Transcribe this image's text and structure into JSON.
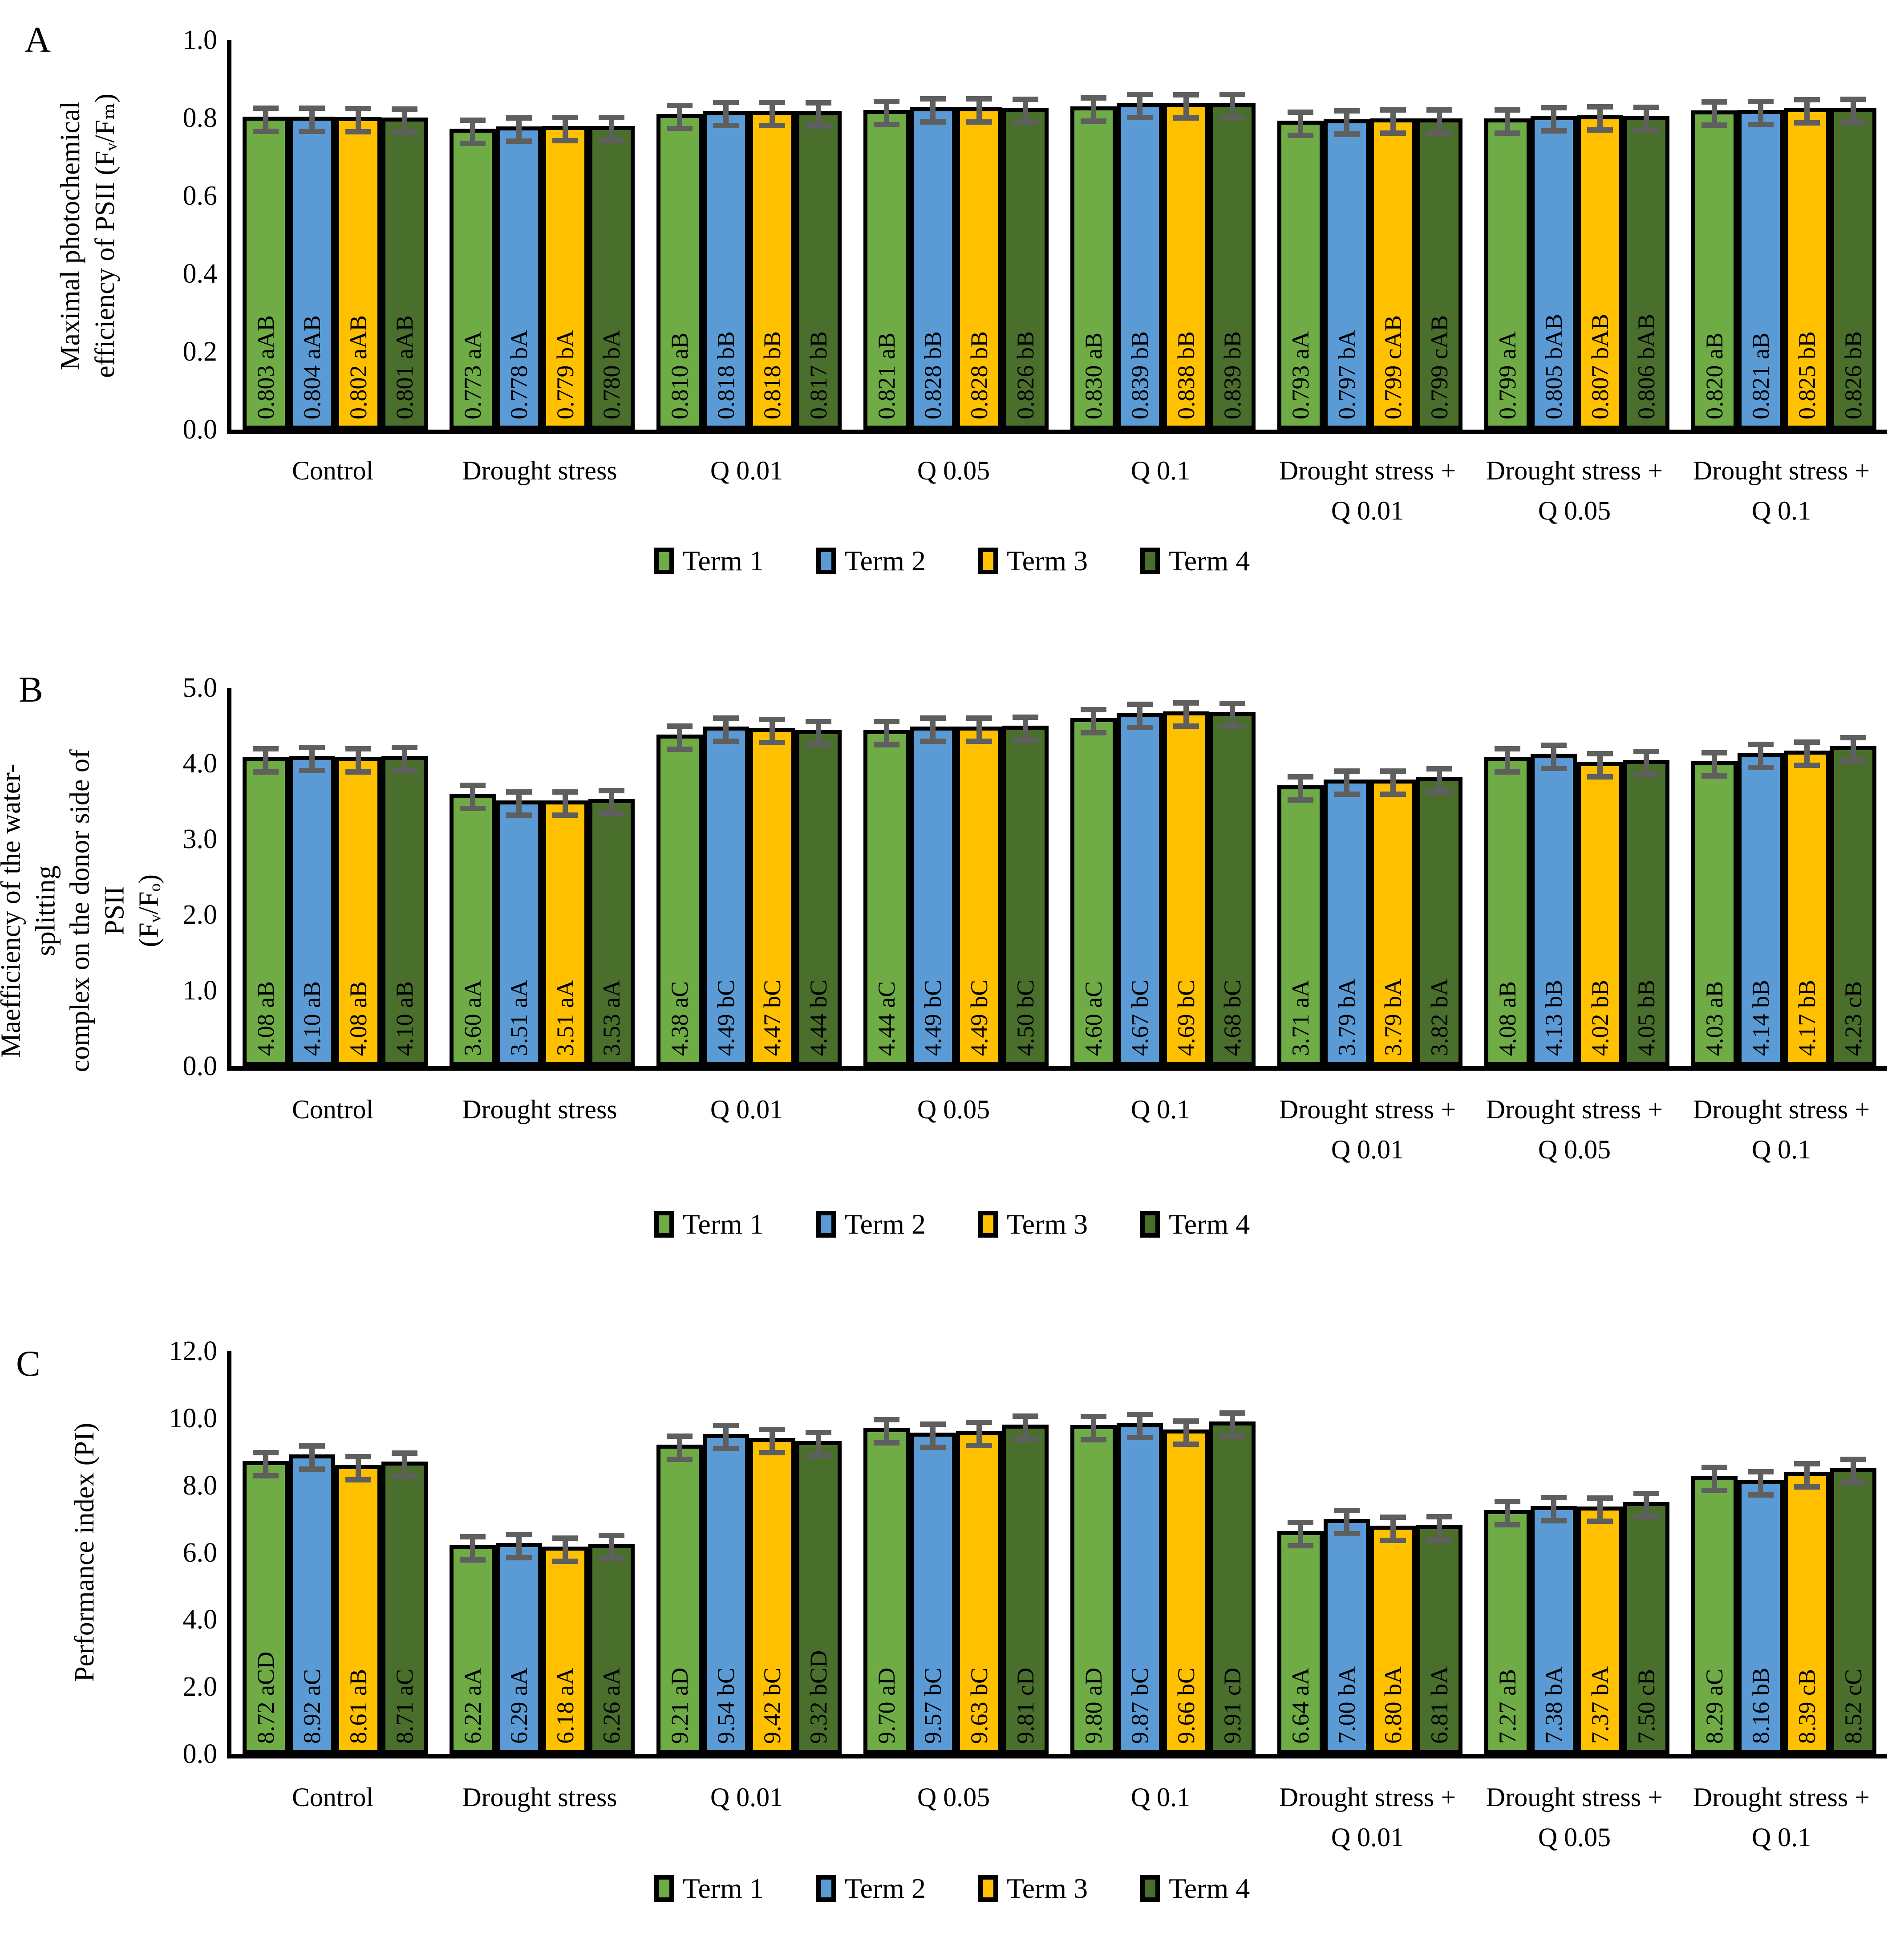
{
  "legend": {
    "position": "bottom",
    "items": [
      {
        "label": "Term 1",
        "color": "#6FAC46"
      },
      {
        "label": "Term 2",
        "color": "#5B9BD5"
      },
      {
        "label": "Term 3",
        "color": "#FFC000"
      },
      {
        "label": "Term 4",
        "color": "#4A6E2C"
      }
    ]
  },
  "styles": {
    "bar_border_color": "#000000",
    "error_bar_color": "#5f5f5f",
    "background": "#ffffff"
  },
  "chart_data": [
    {
      "type": "bar",
      "panel_label": "A",
      "title": "",
      "xlabel": "",
      "ylabel_lines": [
        "Maximal photochemical",
        "efficiency of PSII (Fᵥ/Fₘ)"
      ],
      "ylim": [
        0,
        1.0
      ],
      "ytick_step": 0.2,
      "ytick_decimals": 1,
      "grid": false,
      "error_bars": true,
      "legend_position": "bottom",
      "categories": [
        "Control",
        "Drought stress",
        "Q 0.01",
        "Q 0.05",
        "Q 0.1",
        "Drought stress + Q 0.01",
        "Drought stress + Q 0.05",
        "Drought stress + Q 0.1"
      ],
      "series": [
        {
          "name": "Term 1",
          "color": "#6FAC46",
          "values": [
            0.803,
            0.773,
            0.81,
            0.821,
            0.83,
            0.793,
            0.799,
            0.82
          ],
          "labels": [
            "0.803 aAB",
            "0.773 aA",
            "0.810 aB",
            "0.821 aB",
            "0.830 aB",
            "0.793 aA",
            "0.799 aA",
            "0.820 aB"
          ]
        },
        {
          "name": "Term 2",
          "color": "#5B9BD5",
          "values": [
            0.804,
            0.778,
            0.818,
            0.828,
            0.839,
            0.797,
            0.805,
            0.821
          ],
          "labels": [
            "0.804 aAB",
            "0.778 bA",
            "0.818 bB",
            "0.828 bB",
            "0.839 bB",
            "0.797 bA",
            "0.805 bAB",
            "0.821 aB"
          ]
        },
        {
          "name": "Term 3",
          "color": "#FFC000",
          "values": [
            0.802,
            0.779,
            0.818,
            0.828,
            0.838,
            0.799,
            0.807,
            0.825
          ],
          "labels": [
            "0.802 aAB",
            "0.779 bA",
            "0.818 bB",
            "0.828 bB",
            "0.838 bB",
            "0.799 cAB",
            "0.807 bAB",
            "0.825 bB"
          ]
        },
        {
          "name": "Term 4",
          "color": "#4A6E2C",
          "values": [
            0.801,
            0.78,
            0.817,
            0.826,
            0.839,
            0.799,
            0.806,
            0.826
          ],
          "labels": [
            "0.801 aAB",
            "0.780 bA",
            "0.817 bB",
            "0.826 bB",
            "0.839 bB",
            "0.799 cAB",
            "0.806 bAB",
            "0.826 bB"
          ]
        }
      ]
    },
    {
      "type": "bar",
      "panel_label": "B",
      "title": "",
      "xlabel": "",
      "ylabel_lines": [
        "Maefficiency of the water-splitting",
        "complex on the donor side of PSII",
        "(Fᵥ/Fₒ)"
      ],
      "ylim": [
        0,
        5.0
      ],
      "ytick_step": 1.0,
      "ytick_decimals": 1,
      "grid": false,
      "error_bars": true,
      "legend_position": "bottom",
      "categories": [
        "Control",
        "Drought stress",
        "Q 0.01",
        "Q 0.05",
        "Q 0.1",
        "Drought stress + Q 0.01",
        "Drought stress + Q 0.05",
        "Drought stress + Q 0.1"
      ],
      "series": [
        {
          "name": "Term 1",
          "color": "#6FAC46",
          "values": [
            4.08,
            3.6,
            4.38,
            4.44,
            4.6,
            3.71,
            4.08,
            4.03
          ],
          "labels": [
            "4.08 aB",
            "3.60 aA",
            "4.38 aC",
            "4.44 aC",
            "4.60 aC",
            "3.71 aA",
            "4.08 aB",
            "4.03 aB"
          ]
        },
        {
          "name": "Term 2",
          "color": "#5B9BD5",
          "values": [
            4.1,
            3.51,
            4.49,
            4.49,
            4.67,
            3.79,
            4.13,
            4.14
          ],
          "labels": [
            "4.10 aB",
            "3.51 aA",
            "4.49 bC",
            "4.49 bC",
            "4.67 bC",
            "3.79 bA",
            "4.13 bB",
            "4.14 bB"
          ]
        },
        {
          "name": "Term 3",
          "color": "#FFC000",
          "values": [
            4.08,
            3.51,
            4.47,
            4.49,
            4.69,
            3.79,
            4.02,
            4.17
          ],
          "labels": [
            "4.08 aB",
            "3.51 aA",
            "4.47 bC",
            "4.49 bC",
            "4.69 bC",
            "3.79 bA",
            "4.02 bB",
            "4.17 bB"
          ]
        },
        {
          "name": "Term 4",
          "color": "#4A6E2C",
          "values": [
            4.1,
            3.53,
            4.44,
            4.5,
            4.68,
            3.82,
            4.05,
            4.23
          ],
          "labels": [
            "4.10 aB",
            "3.53 aA",
            "4.44 bC",
            "4.50 bC",
            "4.68 bC",
            "3.82 bA",
            "4.05 bB",
            "4.23 cB"
          ]
        }
      ]
    },
    {
      "type": "bar",
      "panel_label": "C",
      "title": "",
      "xlabel": "",
      "ylabel_lines": [
        "Performance index (PI)"
      ],
      "ylim": [
        0,
        12.0
      ],
      "ytick_step": 2.0,
      "ytick_decimals": 1,
      "grid": false,
      "error_bars": true,
      "legend_position": "bottom",
      "categories": [
        "Control",
        "Drought stress",
        "Q 0.01",
        "Q 0.05",
        "Q 0.1",
        "Drought stress + Q 0.01",
        "Drought stress + Q 0.05",
        "Drought stress + Q 0.1"
      ],
      "series": [
        {
          "name": "Term 1",
          "color": "#6FAC46",
          "values": [
            8.72,
            6.22,
            9.21,
            9.7,
            9.8,
            6.64,
            7.27,
            8.29
          ],
          "labels": [
            "8.72 aCD",
            "6.22 aA",
            "9.21 aD",
            "9.70 aD",
            "9.80 aD",
            "6.64 aA",
            "7.27 aB",
            "8.29 aC"
          ]
        },
        {
          "name": "Term 2",
          "color": "#5B9BD5",
          "values": [
            8.92,
            6.29,
            9.54,
            9.57,
            9.87,
            7.0,
            7.38,
            8.16
          ],
          "labels": [
            "8.92 aC",
            "6.29 aA",
            "9.54 bC",
            "9.57 bC",
            "9.87 bC",
            "7.00 bA",
            "7.38 bA",
            "8.16 bB"
          ]
        },
        {
          "name": "Term 3",
          "color": "#FFC000",
          "values": [
            8.61,
            6.18,
            9.42,
            9.63,
            9.66,
            6.8,
            7.37,
            8.39
          ],
          "labels": [
            "8.61 aB",
            "6.18 aA",
            "9.42 bC",
            "9.63 bC",
            "9.66 bC",
            "6.80 bA",
            "7.37 bA",
            "8.39 cB"
          ]
        },
        {
          "name": "Term 4",
          "color": "#4A6E2C",
          "values": [
            8.71,
            6.26,
            9.32,
            9.81,
            9.91,
            6.81,
            7.5,
            8.52
          ],
          "labels": [
            "8.71 aC",
            "6.26 aA",
            "9.32 bCD",
            "9.81 cD",
            "9.91 cD",
            "6.81 bA",
            "7.50 cB",
            "8.52 cC"
          ]
        }
      ]
    }
  ]
}
